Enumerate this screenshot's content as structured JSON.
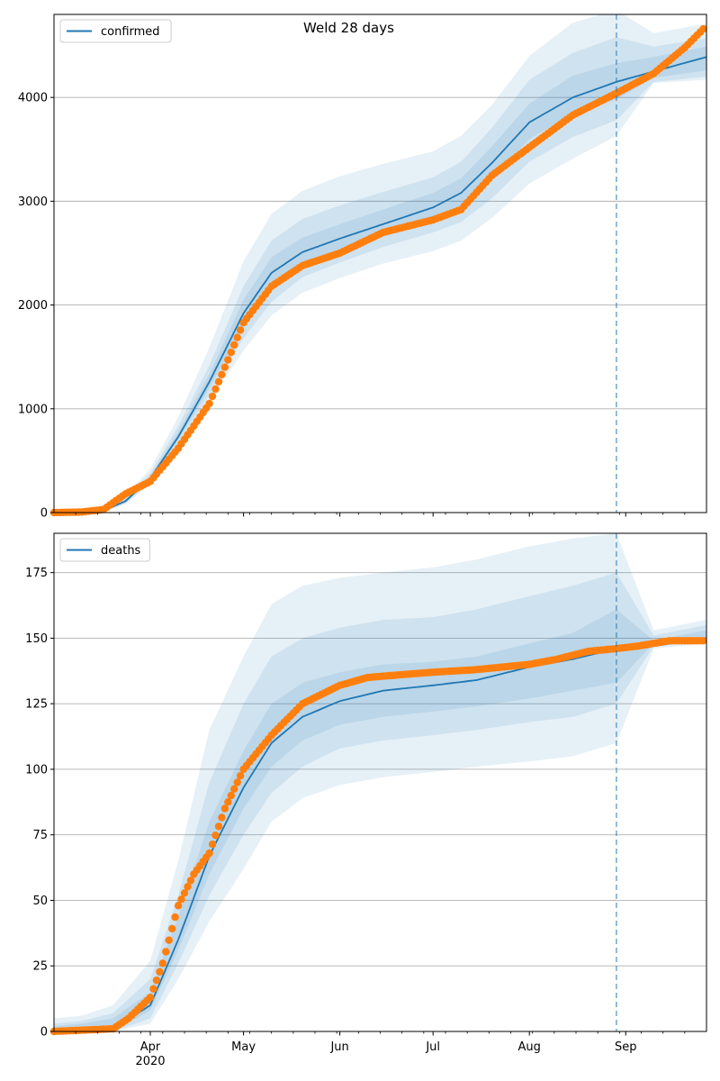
{
  "chart_data": [
    {
      "type": "line",
      "title": "Weld 28 days",
      "xlabel": "",
      "ylabel": "",
      "ylim": [
        0,
        4800
      ],
      "yticks": [
        0,
        1000,
        2000,
        3000,
        4000
      ],
      "xlim": [
        "2020-03-01",
        "2020-09-27"
      ],
      "xticks": [
        {
          "date": "2020-04-01",
          "label": "Apr",
          "sublabel": "2020"
        },
        {
          "date": "2020-05-01",
          "label": "May"
        },
        {
          "date": "2020-06-01",
          "label": "Jun"
        },
        {
          "date": "2020-07-01",
          "label": "Jul"
        },
        {
          "date": "2020-08-01",
          "label": "Aug"
        },
        {
          "date": "2020-09-01",
          "label": "Sep"
        }
      ],
      "grid": "y",
      "legend": {
        "position": "upper-left",
        "entries": [
          "confirmed"
        ]
      },
      "forecast_start": "2020-08-29",
      "series": [
        {
          "name": "confirmed",
          "kind": "model",
          "color": "#1f77b4",
          "x": [
            "2020-03-01",
            "2020-03-10",
            "2020-03-17",
            "2020-03-24",
            "2020-04-01",
            "2020-04-10",
            "2020-04-20",
            "2020-05-01",
            "2020-05-10",
            "2020-05-20",
            "2020-06-01",
            "2020-06-15",
            "2020-07-01",
            "2020-07-10",
            "2020-07-20",
            "2020-08-01",
            "2020-08-15",
            "2020-08-29",
            "2020-09-10",
            "2020-09-27"
          ],
          "values": [
            0,
            5,
            20,
            110,
            330,
            730,
            1260,
            1920,
            2310,
            2510,
            2640,
            2780,
            2940,
            3080,
            3370,
            3760,
            4000,
            4150,
            4250,
            4390
          ],
          "bands": [
            {
              "lower": [
                0,
                0,
                5,
                80,
                270,
                620,
                1070,
                1560,
                1900,
                2120,
                2260,
                2400,
                2520,
                2620,
                2840,
                3170,
                3410,
                3630,
                4140,
                4170
              ],
              "upper": [
                20,
                30,
                60,
                170,
                420,
                920,
                1590,
                2420,
                2880,
                3100,
                3240,
                3360,
                3480,
                3630,
                3930,
                4400,
                4720,
                4840,
                4620,
                4710
              ]
            },
            {
              "lower": [
                0,
                0,
                10,
                90,
                290,
                660,
                1140,
                1680,
                2030,
                2270,
                2410,
                2560,
                2700,
                2800,
                3030,
                3380,
                3620,
                3780,
                4150,
                4200
              ],
              "upper": [
                10,
                20,
                45,
                145,
                380,
                830,
                1420,
                2180,
                2620,
                2830,
                2960,
                3090,
                3230,
                3380,
                3710,
                4170,
                4430,
                4580,
                4490,
                4570
              ]
            },
            {
              "lower": [
                0,
                2,
                14,
                100,
                310,
                700,
                1200,
                1800,
                2170,
                2390,
                2530,
                2670,
                2830,
                2950,
                3220,
                3600,
                3840,
                3980,
                4190,
                4260
              ],
              "upper": [
                6,
                12,
                32,
                125,
                355,
                780,
                1330,
                2050,
                2460,
                2650,
                2780,
                2920,
                3080,
                3220,
                3530,
                3940,
                4210,
                4330,
                4390,
                4490
              ]
            }
          ]
        },
        {
          "name": "",
          "kind": "observed",
          "color": "#ff7f0e",
          "x": [
            "2020-03-01",
            "2020-03-10",
            "2020-03-17",
            "2020-03-24",
            "2020-04-01",
            "2020-04-10",
            "2020-04-20",
            "2020-04-25",
            "2020-05-01",
            "2020-05-10",
            "2020-05-20",
            "2020-06-01",
            "2020-06-15",
            "2020-07-01",
            "2020-07-10",
            "2020-07-20",
            "2020-08-01",
            "2020-08-15",
            "2020-08-29",
            "2020-09-10",
            "2020-09-20",
            "2020-09-26"
          ],
          "values": [
            0,
            5,
            30,
            180,
            300,
            620,
            1050,
            1400,
            1830,
            2180,
            2380,
            2500,
            2700,
            2820,
            2920,
            3250,
            3520,
            3830,
            4040,
            4230,
            4480,
            4660
          ]
        }
      ]
    },
    {
      "type": "line",
      "title": "",
      "xlabel": "",
      "ylabel": "",
      "ylim": [
        0,
        190
      ],
      "yticks": [
        0,
        25,
        50,
        75,
        100,
        125,
        150,
        175
      ],
      "xlim": [
        "2020-03-01",
        "2020-09-27"
      ],
      "xticks": [
        {
          "date": "2020-04-01",
          "label": "Apr",
          "sublabel": "2020"
        },
        {
          "date": "2020-05-01",
          "label": "May"
        },
        {
          "date": "2020-06-01",
          "label": "Jun"
        },
        {
          "date": "2020-07-01",
          "label": "Jul"
        },
        {
          "date": "2020-08-01",
          "label": "Aug"
        },
        {
          "date": "2020-09-01",
          "label": "Sep"
        }
      ],
      "grid": "y",
      "legend": {
        "position": "upper-left",
        "entries": [
          "deaths"
        ]
      },
      "forecast_start": "2020-08-29",
      "series": [
        {
          "name": "deaths",
          "kind": "model",
          "color": "#1f77b4",
          "x": [
            "2020-03-01",
            "2020-03-10",
            "2020-03-20",
            "2020-04-01",
            "2020-04-10",
            "2020-04-20",
            "2020-05-01",
            "2020-05-10",
            "2020-05-20",
            "2020-06-01",
            "2020-06-15",
            "2020-07-01",
            "2020-07-15",
            "2020-08-01",
            "2020-08-15",
            "2020-08-29",
            "2020-09-10",
            "2020-09-27"
          ],
          "values": [
            0,
            0,
            1,
            10,
            35,
            67,
            93,
            110,
            120,
            126,
            130,
            132,
            134,
            139,
            142,
            146,
            147,
            150
          ],
          "bands": [
            {
              "lower": [
                0,
                0,
                0,
                3,
                20,
                42,
                62,
                80,
                89,
                94,
                97,
                99,
                101,
                103,
                105,
                110,
                146,
                148
              ],
              "upper": [
                5,
                6,
                10,
                27,
                65,
                115,
                143,
                163,
                170,
                173,
                175,
                177,
                180,
                185,
                188,
                190,
                153,
                157
              ]
            },
            {
              "lower": [
                0,
                0,
                0,
                5,
                26,
                52,
                75,
                91,
                101,
                108,
                111,
                113,
                115,
                118,
                120,
                125,
                147,
                149
              ],
              "upper": [
                3,
                4,
                7,
                20,
                52,
                95,
                125,
                143,
                150,
                154,
                157,
                158,
                161,
                166,
                170,
                175,
                151,
                155
              ]
            },
            {
              "lower": [
                0,
                0,
                0,
                8,
                31,
                60,
                85,
                101,
                111,
                117,
                120,
                122,
                124,
                127,
                130,
                133,
                148,
                149
              ],
              "upper": [
                2,
                3,
                5,
                15,
                44,
                80,
                107,
                125,
                133,
                137,
                140,
                141,
                143,
                148,
                152,
                161,
                149,
                153
              ]
            }
          ]
        },
        {
          "name": "",
          "kind": "observed",
          "color": "#ff7f0e",
          "x": [
            "2020-03-01",
            "2020-03-20",
            "2020-03-25",
            "2020-04-01",
            "2020-04-05",
            "2020-04-10",
            "2020-04-15",
            "2020-04-20",
            "2020-04-25",
            "2020-05-01",
            "2020-05-10",
            "2020-05-20",
            "2020-06-01",
            "2020-06-10",
            "2020-06-20",
            "2020-07-01",
            "2020-07-15",
            "2020-08-01",
            "2020-08-10",
            "2020-08-20",
            "2020-08-29",
            "2020-09-05",
            "2020-09-15",
            "2020-09-26"
          ],
          "values": [
            0,
            1,
            5,
            13,
            26,
            48,
            60,
            68,
            85,
            100,
            113,
            125,
            132,
            135,
            136,
            137,
            138,
            140,
            142,
            145,
            146,
            147,
            149,
            149
          ]
        }
      ]
    }
  ]
}
